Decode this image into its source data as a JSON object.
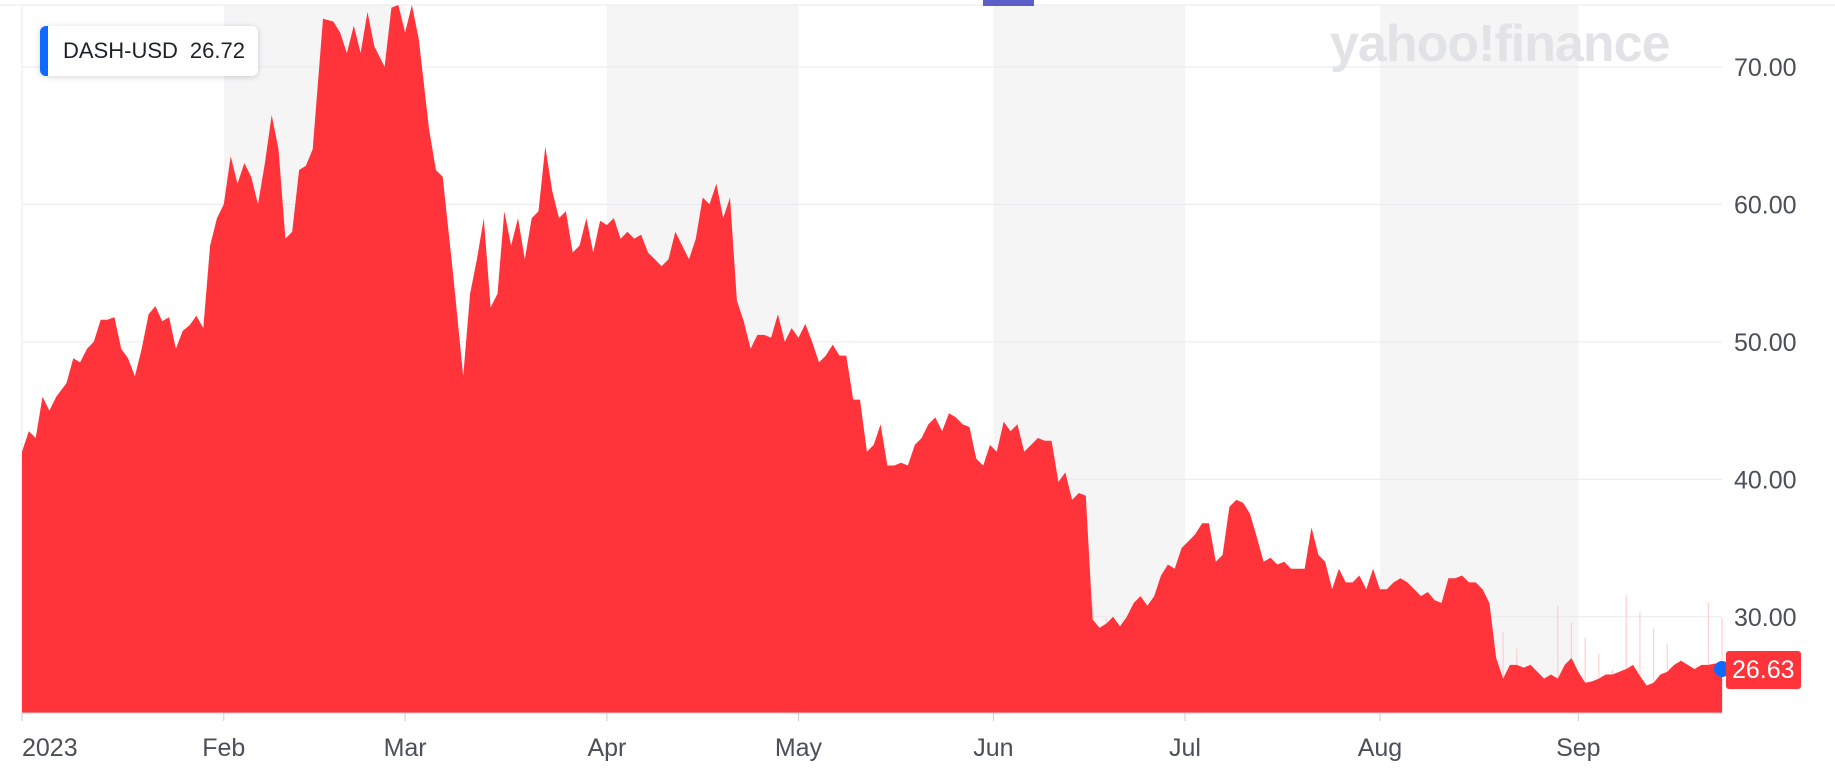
{
  "ticker": {
    "symbol": "DASH-USD",
    "price": "26.72"
  },
  "brand": "yahoo!finance",
  "last_price_label": "26.63",
  "colors": {
    "area": "#ff333a",
    "volume_bar": "#ffc4c6",
    "grid": "#e8e9ec",
    "band": "#f5f5f6",
    "ticker_accent": "#0f69ff",
    "last_dot": "#0f69ff",
    "top_marker": "#5b5fc7"
  },
  "chart_data": {
    "type": "area",
    "series": [
      {
        "values": [
          [
            0,
            42.0
          ],
          [
            2,
            43.5
          ],
          [
            4,
            43.0
          ],
          [
            6,
            46.0
          ],
          [
            8,
            45.0
          ],
          [
            10,
            46.0
          ],
          [
            13,
            47.0
          ],
          [
            15,
            48.8
          ],
          [
            17,
            48.5
          ],
          [
            19,
            49.5
          ],
          [
            21,
            50.0
          ],
          [
            23,
            51.6
          ],
          [
            25,
            51.6
          ],
          [
            27,
            51.8
          ],
          [
            29,
            49.5
          ],
          [
            31,
            48.8
          ],
          [
            33,
            47.5
          ],
          [
            35,
            49.5
          ],
          [
            37,
            52.0
          ],
          [
            39,
            52.6
          ],
          [
            41,
            51.5
          ],
          [
            43,
            51.8
          ],
          [
            45,
            49.5
          ],
          [
            47,
            50.8
          ],
          [
            49,
            51.2
          ],
          [
            51,
            51.9
          ],
          [
            53,
            51.0
          ],
          [
            55,
            57.0
          ],
          [
            57,
            59.0
          ],
          [
            59,
            60.0
          ],
          [
            61,
            63.5
          ],
          [
            63,
            61.5
          ],
          [
            65,
            63.0
          ],
          [
            67,
            62.0
          ],
          [
            69,
            60.0
          ],
          [
            71,
            63.0
          ],
          [
            73,
            66.5
          ],
          [
            75,
            64.0
          ],
          [
            77,
            57.5
          ],
          [
            79,
            58.0
          ],
          [
            81,
            62.5
          ],
          [
            83,
            62.8
          ],
          [
            85,
            64.0
          ],
          [
            88,
            73.5
          ],
          [
            91,
            73.3
          ],
          [
            93,
            72.5
          ],
          [
            95,
            71.0
          ],
          [
            97,
            73.0
          ],
          [
            99,
            71.0
          ],
          [
            101,
            74.0
          ],
          [
            103,
            71.5
          ],
          [
            106,
            70.0
          ],
          [
            108,
            74.3
          ],
          [
            110,
            74.5
          ],
          [
            112,
            72.5
          ],
          [
            114,
            74.5
          ],
          [
            116,
            72.0
          ],
          [
            119,
            65.5
          ],
          [
            121,
            62.5
          ],
          [
            123,
            62.0
          ],
          [
            126,
            55.0
          ],
          [
            129,
            47.5
          ],
          [
            131,
            53.5
          ],
          [
            133,
            56.0
          ],
          [
            135,
            59.0
          ],
          [
            137,
            52.5
          ],
          [
            139,
            53.5
          ],
          [
            141,
            59.5
          ],
          [
            143,
            57.0
          ],
          [
            145,
            59.0
          ],
          [
            147,
            56.0
          ],
          [
            149,
            59.0
          ],
          [
            151,
            59.5
          ],
          [
            153,
            64.2
          ],
          [
            155,
            61.0
          ],
          [
            157,
            59.0
          ],
          [
            159,
            59.5
          ],
          [
            161,
            56.5
          ],
          [
            163,
            57.0
          ],
          [
            165,
            59.0
          ],
          [
            167,
            56.5
          ],
          [
            169,
            58.8
          ],
          [
            171,
            58.5
          ],
          [
            173,
            59.0
          ],
          [
            175,
            57.5
          ],
          [
            177,
            58.0
          ],
          [
            179,
            57.5
          ],
          [
            181,
            57.8
          ],
          [
            183,
            56.5
          ],
          [
            185,
            56.0
          ],
          [
            187,
            55.5
          ],
          [
            189,
            56.0
          ],
          [
            191,
            58.0
          ],
          [
            193,
            57.0
          ],
          [
            195,
            56.0
          ],
          [
            197,
            57.5
          ],
          [
            199,
            60.5
          ],
          [
            201,
            60.0
          ],
          [
            203,
            61.5
          ],
          [
            205,
            59.0
          ],
          [
            207,
            60.5
          ],
          [
            209,
            53.0
          ],
          [
            211,
            51.5
          ],
          [
            213,
            49.5
          ],
          [
            215,
            50.5
          ],
          [
            217,
            50.5
          ],
          [
            219,
            50.3
          ],
          [
            221,
            52.0
          ],
          [
            223,
            50.0
          ],
          [
            225,
            51.0
          ],
          [
            227,
            50.3
          ],
          [
            229,
            51.3
          ],
          [
            231,
            50.0
          ],
          [
            233,
            48.5
          ],
          [
            235,
            49.0
          ],
          [
            237,
            49.8
          ],
          [
            239,
            49.0
          ],
          [
            241,
            49.0
          ],
          [
            243,
            45.8
          ],
          [
            245,
            45.8
          ],
          [
            247,
            42.0
          ],
          [
            249,
            42.5
          ],
          [
            251,
            44.0
          ],
          [
            253,
            41.0
          ],
          [
            255,
            41.0
          ],
          [
            257,
            41.2
          ],
          [
            259,
            41.0
          ],
          [
            261,
            42.5
          ],
          [
            263,
            43.0
          ],
          [
            265,
            44.0
          ],
          [
            267,
            44.5
          ],
          [
            269,
            43.5
          ],
          [
            271,
            44.8
          ],
          [
            273,
            44.5
          ],
          [
            275,
            44.0
          ],
          [
            277,
            43.8
          ],
          [
            279,
            41.5
          ],
          [
            281,
            41.0
          ],
          [
            283,
            42.5
          ],
          [
            285,
            42.0
          ],
          [
            287,
            44.2
          ],
          [
            289,
            43.5
          ],
          [
            291,
            44.0
          ],
          [
            293,
            42.0
          ],
          [
            295,
            42.5
          ],
          [
            297,
            43.0
          ],
          [
            299,
            42.8
          ],
          [
            301,
            42.8
          ],
          [
            303,
            39.8
          ],
          [
            305,
            40.5
          ],
          [
            307,
            38.5
          ],
          [
            309,
            39.0
          ],
          [
            311,
            38.8
          ],
          [
            313,
            29.8
          ],
          [
            315,
            29.2
          ],
          [
            317,
            29.5
          ],
          [
            319,
            30.0
          ],
          [
            321,
            29.3
          ],
          [
            323,
            30.0
          ],
          [
            325,
            31.0
          ],
          [
            327,
            31.5
          ],
          [
            329,
            30.8
          ],
          [
            331,
            31.5
          ],
          [
            333,
            33.0
          ],
          [
            335,
            33.8
          ],
          [
            337,
            33.5
          ],
          [
            339,
            35.0
          ],
          [
            341,
            35.5
          ],
          [
            343,
            36.0
          ],
          [
            345,
            36.8
          ],
          [
            347,
            36.8
          ],
          [
            349,
            34.0
          ],
          [
            351,
            34.5
          ],
          [
            353,
            38.0
          ],
          [
            355,
            38.5
          ],
          [
            357,
            38.3
          ],
          [
            359,
            37.5
          ],
          [
            361,
            35.8
          ],
          [
            363,
            34.0
          ],
          [
            365,
            34.3
          ],
          [
            367,
            33.8
          ],
          [
            369,
            34.0
          ],
          [
            371,
            33.5
          ],
          [
            373,
            33.5
          ],
          [
            375,
            33.5
          ],
          [
            377,
            36.5
          ],
          [
            379,
            34.5
          ],
          [
            381,
            34.0
          ],
          [
            383,
            32.0
          ],
          [
            385,
            33.5
          ],
          [
            387,
            32.5
          ],
          [
            389,
            32.5
          ],
          [
            391,
            33.0
          ],
          [
            393,
            32.0
          ],
          [
            395,
            33.5
          ],
          [
            397,
            32.0
          ],
          [
            399,
            32.0
          ],
          [
            401,
            32.5
          ],
          [
            403,
            32.8
          ],
          [
            405,
            32.5
          ],
          [
            407,
            32.0
          ],
          [
            409,
            31.5
          ],
          [
            411,
            31.8
          ],
          [
            413,
            31.2
          ],
          [
            415,
            31.0
          ],
          [
            417,
            32.8
          ],
          [
            419,
            32.8
          ],
          [
            421,
            33.0
          ],
          [
            423,
            32.5
          ],
          [
            425,
            32.5
          ],
          [
            427,
            32.0
          ],
          [
            429,
            31.0
          ],
          [
            431,
            27.0
          ],
          [
            433,
            25.5
          ],
          [
            435,
            26.5
          ],
          [
            437,
            26.5
          ],
          [
            439,
            26.3
          ],
          [
            441,
            26.5
          ],
          [
            443,
            26.0
          ],
          [
            445,
            25.5
          ],
          [
            447,
            25.8
          ],
          [
            449,
            25.5
          ],
          [
            451,
            26.5
          ],
          [
            453,
            27.0
          ],
          [
            455,
            26.0
          ],
          [
            457,
            25.2
          ],
          [
            459,
            25.3
          ],
          [
            461,
            25.5
          ],
          [
            463,
            25.8
          ],
          [
            465,
            25.8
          ],
          [
            467,
            26.0
          ],
          [
            469,
            26.2
          ],
          [
            471,
            26.5
          ],
          [
            473,
            25.7
          ],
          [
            475,
            25.0
          ],
          [
            477,
            25.2
          ],
          [
            479,
            25.8
          ],
          [
            481,
            26.0
          ],
          [
            483,
            26.5
          ],
          [
            485,
            26.8
          ],
          [
            487,
            26.5
          ],
          [
            489,
            26.2
          ],
          [
            491,
            26.5
          ],
          [
            493,
            26.5
          ],
          [
            495,
            26.6
          ],
          [
            497,
            26.63
          ]
        ]
      }
    ],
    "x_range": [
      0,
      497
    ],
    "x_ticks": [
      {
        "x": 0,
        "label": "2023"
      },
      {
        "x": 59,
        "label": "Feb"
      },
      {
        "x": 112,
        "label": "Mar"
      },
      {
        "x": 171,
        "label": "Apr"
      },
      {
        "x": 227,
        "label": "May"
      },
      {
        "x": 284,
        "label": "Jun"
      },
      {
        "x": 340,
        "label": "Jul"
      },
      {
        "x": 397,
        "label": "Aug"
      },
      {
        "x": 455,
        "label": "Sep"
      }
    ],
    "y_ticks": [
      "70.00",
      "60.00",
      "50.00",
      "40.00",
      "30.00"
    ],
    "ylim": [
      23,
      74.5
    ],
    "grid": true,
    "alternating_month_bands": true
  }
}
